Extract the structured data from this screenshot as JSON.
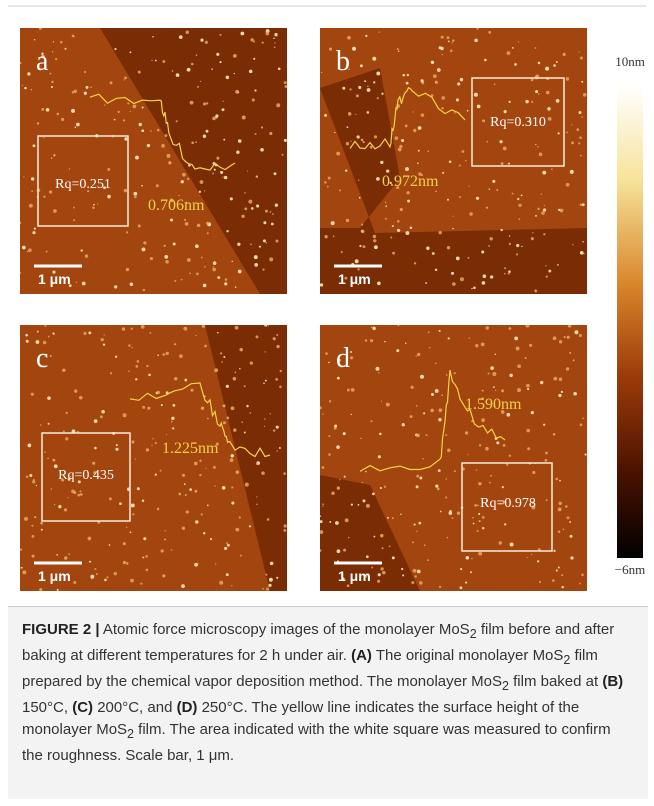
{
  "panels": [
    {
      "label": "a",
      "rq": "Rq=0.251",
      "height": "0.706nm",
      "scale_bar": "1 μm"
    },
    {
      "label": "b",
      "rq": "Rq=0.310",
      "height": "0.972nm",
      "scale_bar": "1 μm"
    },
    {
      "label": "c",
      "rq": "Rq=0.435",
      "height": "1.225nm",
      "scale_bar": "1 μm"
    },
    {
      "label": "d",
      "rq": "Rq=0.978",
      "height": "1.590nm",
      "scale_bar": "1 μm"
    }
  ],
  "colorbar": {
    "top": "10nm",
    "bottom": "−6nm"
  },
  "caption": [
    {
      "text": "FIGURE 2 |",
      "bold": true
    },
    {
      "text": " Atomic force microscopy images of the monolayer MoS"
    },
    {
      "text": "2",
      "sub": true
    },
    {
      "text": " film before and after baking at different temperatures for 2 h under air. "
    },
    {
      "text": "(A)",
      "bold": true
    },
    {
      "text": " The original monolayer MoS"
    },
    {
      "text": "2",
      "sub": true
    },
    {
      "text": " film prepared by the chemical vapor deposition method. The monolayer MoS"
    },
    {
      "text": "2",
      "sub": true
    },
    {
      "text": " film baked at "
    },
    {
      "text": "(B)",
      "bold": true
    },
    {
      "text": " 150°C, "
    },
    {
      "text": "(C)",
      "bold": true
    },
    {
      "text": " 200°C, and "
    },
    {
      "text": "(D)",
      "bold": true
    },
    {
      "text": " 250°C. The yellow line indicates the surface height of the monolayer MoS"
    },
    {
      "text": "2",
      "sub": true
    },
    {
      "text": " film. The area indicated with the white square was measured to confirm the roughness. Scale bar, 1 μm."
    }
  ]
}
